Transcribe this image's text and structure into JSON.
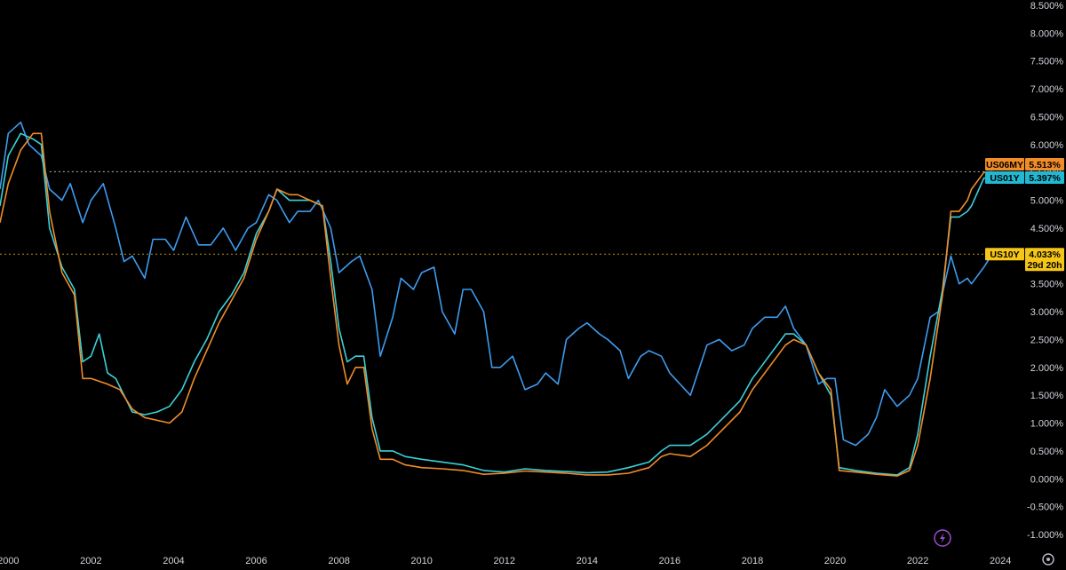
{
  "chart_data": {
    "type": "line",
    "y_unit": "%",
    "ylim": [
      -1.0,
      8.5
    ],
    "y_ticks": [
      "8.500%",
      "8.000%",
      "7.500%",
      "7.000%",
      "6.500%",
      "6.000%",
      "5.500%",
      "5.000%",
      "4.500%",
      "4.000%",
      "3.500%",
      "3.000%",
      "2.500%",
      "2.000%",
      "1.500%",
      "1.000%",
      "0.500%",
      "0.000%",
      "-0.500%",
      "-1.000%"
    ],
    "y_tick_values": [
      8.5,
      8.0,
      7.5,
      7.0,
      6.5,
      6.0,
      5.5,
      5.0,
      4.5,
      4.0,
      3.5,
      3.0,
      2.5,
      2.0,
      1.5,
      1.0,
      0.5,
      0.0,
      -0.5,
      -1.0
    ],
    "xlim": [
      1999.8,
      2025.5
    ],
    "x_ticks": [
      "2000",
      "2002",
      "2004",
      "2006",
      "2008",
      "2010",
      "2012",
      "2014",
      "2016",
      "2018",
      "2020",
      "2022",
      "2024"
    ],
    "x_tick_values": [
      2000,
      2002,
      2004,
      2006,
      2008,
      2010,
      2012,
      2014,
      2016,
      2018,
      2020,
      2022,
      2024
    ],
    "grid": false,
    "series": [
      {
        "name": "US10Y",
        "color": "#3d9cf0",
        "last_label": "4.033%",
        "countdown": "29d 20h",
        "tag_color": "#f5c518",
        "points": [
          [
            1999.8,
            5.2
          ],
          [
            2000.0,
            6.2
          ],
          [
            2000.3,
            6.4
          ],
          [
            2000.5,
            6.0
          ],
          [
            2000.8,
            5.8
          ],
          [
            2001.0,
            5.2
          ],
          [
            2001.3,
            5.0
          ],
          [
            2001.5,
            5.3
          ],
          [
            2001.8,
            4.6
          ],
          [
            2002.0,
            5.0
          ],
          [
            2002.3,
            5.3
          ],
          [
            2002.6,
            4.5
          ],
          [
            2002.8,
            3.9
          ],
          [
            2003.0,
            4.0
          ],
          [
            2003.3,
            3.6
          ],
          [
            2003.5,
            4.3
          ],
          [
            2003.8,
            4.3
          ],
          [
            2004.0,
            4.1
          ],
          [
            2004.3,
            4.7
          ],
          [
            2004.6,
            4.2
          ],
          [
            2004.9,
            4.2
          ],
          [
            2005.2,
            4.5
          ],
          [
            2005.5,
            4.1
          ],
          [
            2005.8,
            4.5
          ],
          [
            2006.0,
            4.6
          ],
          [
            2006.3,
            5.1
          ],
          [
            2006.5,
            5.0
          ],
          [
            2006.8,
            4.6
          ],
          [
            2007.0,
            4.8
          ],
          [
            2007.3,
            4.8
          ],
          [
            2007.5,
            5.0
          ],
          [
            2007.8,
            4.5
          ],
          [
            2008.0,
            3.7
          ],
          [
            2008.3,
            3.9
          ],
          [
            2008.5,
            4.0
          ],
          [
            2008.8,
            3.4
          ],
          [
            2009.0,
            2.2
          ],
          [
            2009.3,
            2.9
          ],
          [
            2009.5,
            3.6
          ],
          [
            2009.8,
            3.4
          ],
          [
            2010.0,
            3.7
          ],
          [
            2010.3,
            3.8
          ],
          [
            2010.5,
            3.0
          ],
          [
            2010.8,
            2.6
          ],
          [
            2011.0,
            3.4
          ],
          [
            2011.2,
            3.4
          ],
          [
            2011.5,
            3.0
          ],
          [
            2011.7,
            2.0
          ],
          [
            2011.9,
            2.0
          ],
          [
            2012.2,
            2.2
          ],
          [
            2012.5,
            1.6
          ],
          [
            2012.8,
            1.7
          ],
          [
            2013.0,
            1.9
          ],
          [
            2013.3,
            1.7
          ],
          [
            2013.5,
            2.5
          ],
          [
            2013.8,
            2.7
          ],
          [
            2014.0,
            2.8
          ],
          [
            2014.3,
            2.6
          ],
          [
            2014.5,
            2.5
          ],
          [
            2014.8,
            2.3
          ],
          [
            2015.0,
            1.8
          ],
          [
            2015.3,
            2.2
          ],
          [
            2015.5,
            2.3
          ],
          [
            2015.8,
            2.2
          ],
          [
            2016.0,
            1.9
          ],
          [
            2016.5,
            1.5
          ],
          [
            2016.9,
            2.4
          ],
          [
            2017.2,
            2.5
          ],
          [
            2017.5,
            2.3
          ],
          [
            2017.8,
            2.4
          ],
          [
            2018.0,
            2.7
          ],
          [
            2018.3,
            2.9
          ],
          [
            2018.6,
            2.9
          ],
          [
            2018.8,
            3.1
          ],
          [
            2019.0,
            2.7
          ],
          [
            2019.3,
            2.4
          ],
          [
            2019.6,
            1.7
          ],
          [
            2019.8,
            1.8
          ],
          [
            2020.0,
            1.8
          ],
          [
            2020.2,
            0.7
          ],
          [
            2020.5,
            0.6
          ],
          [
            2020.8,
            0.8
          ],
          [
            2021.0,
            1.1
          ],
          [
            2021.2,
            1.6
          ],
          [
            2021.5,
            1.3
          ],
          [
            2021.8,
            1.5
          ],
          [
            2022.0,
            1.8
          ],
          [
            2022.3,
            2.9
          ],
          [
            2022.5,
            3.0
          ],
          [
            2022.8,
            4.0
          ],
          [
            2023.0,
            3.5
          ],
          [
            2023.2,
            3.6
          ],
          [
            2023.3,
            3.5
          ],
          [
            2023.6,
            3.8
          ],
          [
            2023.8,
            4.033
          ]
        ]
      },
      {
        "name": "US01Y",
        "color": "#3bd1d8",
        "last_label": "5.397%",
        "tag_color": "#22b8d1",
        "points": [
          [
            1999.8,
            4.9
          ],
          [
            2000.0,
            5.8
          ],
          [
            2000.3,
            6.2
          ],
          [
            2000.6,
            6.1
          ],
          [
            2000.8,
            6.0
          ],
          [
            2001.0,
            4.5
          ],
          [
            2001.3,
            3.8
          ],
          [
            2001.6,
            3.4
          ],
          [
            2001.8,
            2.1
          ],
          [
            2002.0,
            2.2
          ],
          [
            2002.2,
            2.6
          ],
          [
            2002.4,
            1.9
          ],
          [
            2002.6,
            1.8
          ],
          [
            2003.0,
            1.2
          ],
          [
            2003.3,
            1.15
          ],
          [
            2003.6,
            1.2
          ],
          [
            2003.9,
            1.3
          ],
          [
            2004.2,
            1.6
          ],
          [
            2004.5,
            2.1
          ],
          [
            2004.8,
            2.5
          ],
          [
            2005.1,
            3.0
          ],
          [
            2005.4,
            3.3
          ],
          [
            2005.7,
            3.7
          ],
          [
            2006.0,
            4.4
          ],
          [
            2006.3,
            4.8
          ],
          [
            2006.5,
            5.2
          ],
          [
            2006.8,
            5.0
          ],
          [
            2007.0,
            5.0
          ],
          [
            2007.3,
            5.0
          ],
          [
            2007.6,
            4.9
          ],
          [
            2007.8,
            3.9
          ],
          [
            2008.0,
            2.7
          ],
          [
            2008.2,
            2.1
          ],
          [
            2008.4,
            2.2
          ],
          [
            2008.6,
            2.2
          ],
          [
            2008.8,
            1.1
          ],
          [
            2009.0,
            0.5
          ],
          [
            2009.3,
            0.5
          ],
          [
            2009.6,
            0.4
          ],
          [
            2010.0,
            0.35
          ],
          [
            2010.5,
            0.3
          ],
          [
            2011.0,
            0.25
          ],
          [
            2011.5,
            0.15
          ],
          [
            2012.0,
            0.12
          ],
          [
            2012.5,
            0.18
          ],
          [
            2013.0,
            0.15
          ],
          [
            2013.5,
            0.13
          ],
          [
            2014.0,
            0.11
          ],
          [
            2014.5,
            0.12
          ],
          [
            2015.0,
            0.2
          ],
          [
            2015.5,
            0.3
          ],
          [
            2015.8,
            0.5
          ],
          [
            2016.0,
            0.6
          ],
          [
            2016.5,
            0.6
          ],
          [
            2016.9,
            0.8
          ],
          [
            2017.3,
            1.1
          ],
          [
            2017.7,
            1.4
          ],
          [
            2018.0,
            1.8
          ],
          [
            2018.4,
            2.2
          ],
          [
            2018.8,
            2.6
          ],
          [
            2019.0,
            2.6
          ],
          [
            2019.3,
            2.4
          ],
          [
            2019.6,
            1.9
          ],
          [
            2019.9,
            1.5
          ],
          [
            2020.1,
            0.2
          ],
          [
            2020.5,
            0.15
          ],
          [
            2021.0,
            0.1
          ],
          [
            2021.5,
            0.07
          ],
          [
            2021.8,
            0.2
          ],
          [
            2022.0,
            0.8
          ],
          [
            2022.3,
            2.2
          ],
          [
            2022.6,
            3.4
          ],
          [
            2022.8,
            4.7
          ],
          [
            2023.0,
            4.7
          ],
          [
            2023.2,
            4.8
          ],
          [
            2023.3,
            4.9
          ],
          [
            2023.6,
            5.4
          ],
          [
            2023.8,
            5.397
          ]
        ]
      },
      {
        "name": "US06MY",
        "color": "#f28c28",
        "last_label": "5.513%",
        "tag_color": "#f28c28",
        "points": [
          [
            1999.8,
            4.6
          ],
          [
            2000.0,
            5.3
          ],
          [
            2000.3,
            5.9
          ],
          [
            2000.6,
            6.2
          ],
          [
            2000.8,
            6.2
          ],
          [
            2001.0,
            4.8
          ],
          [
            2001.3,
            3.7
          ],
          [
            2001.6,
            3.3
          ],
          [
            2001.8,
            1.8
          ],
          [
            2002.0,
            1.8
          ],
          [
            2002.4,
            1.7
          ],
          [
            2002.7,
            1.6
          ],
          [
            2003.0,
            1.25
          ],
          [
            2003.3,
            1.1
          ],
          [
            2003.6,
            1.05
          ],
          [
            2003.9,
            1.0
          ],
          [
            2004.2,
            1.2
          ],
          [
            2004.5,
            1.8
          ],
          [
            2004.8,
            2.3
          ],
          [
            2005.1,
            2.8
          ],
          [
            2005.4,
            3.2
          ],
          [
            2005.7,
            3.6
          ],
          [
            2006.0,
            4.3
          ],
          [
            2006.3,
            4.8
          ],
          [
            2006.5,
            5.2
          ],
          [
            2006.8,
            5.1
          ],
          [
            2007.0,
            5.1
          ],
          [
            2007.3,
            5.0
          ],
          [
            2007.6,
            4.9
          ],
          [
            2007.8,
            3.6
          ],
          [
            2008.0,
            2.4
          ],
          [
            2008.2,
            1.7
          ],
          [
            2008.4,
            2.0
          ],
          [
            2008.6,
            2.0
          ],
          [
            2008.8,
            0.9
          ],
          [
            2009.0,
            0.35
          ],
          [
            2009.3,
            0.35
          ],
          [
            2009.6,
            0.25
          ],
          [
            2010.0,
            0.2
          ],
          [
            2010.5,
            0.18
          ],
          [
            2011.0,
            0.15
          ],
          [
            2011.5,
            0.08
          ],
          [
            2012.0,
            0.1
          ],
          [
            2012.5,
            0.14
          ],
          [
            2013.0,
            0.12
          ],
          [
            2013.5,
            0.1
          ],
          [
            2014.0,
            0.07
          ],
          [
            2014.5,
            0.07
          ],
          [
            2015.0,
            0.1
          ],
          [
            2015.5,
            0.2
          ],
          [
            2015.8,
            0.4
          ],
          [
            2016.0,
            0.45
          ],
          [
            2016.5,
            0.4
          ],
          [
            2016.9,
            0.6
          ],
          [
            2017.3,
            0.9
          ],
          [
            2017.7,
            1.2
          ],
          [
            2018.0,
            1.6
          ],
          [
            2018.4,
            2.0
          ],
          [
            2018.8,
            2.4
          ],
          [
            2019.0,
            2.5
          ],
          [
            2019.3,
            2.4
          ],
          [
            2019.6,
            1.9
          ],
          [
            2019.9,
            1.6
          ],
          [
            2020.1,
            0.15
          ],
          [
            2020.5,
            0.12
          ],
          [
            2021.0,
            0.08
          ],
          [
            2021.5,
            0.05
          ],
          [
            2021.8,
            0.15
          ],
          [
            2022.0,
            0.6
          ],
          [
            2022.3,
            1.8
          ],
          [
            2022.6,
            3.3
          ],
          [
            2022.8,
            4.8
          ],
          [
            2023.0,
            4.8
          ],
          [
            2023.2,
            5.0
          ],
          [
            2023.3,
            5.2
          ],
          [
            2023.6,
            5.5
          ],
          [
            2023.8,
            5.513
          ]
        ]
      }
    ]
  },
  "icons": {
    "lightning": "lightning-icon",
    "settings": "gear-icon"
  }
}
